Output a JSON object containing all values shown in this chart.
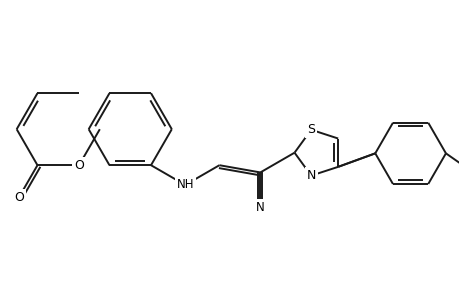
{
  "background_color": "#ffffff",
  "line_color": "#1a1a1a",
  "line_width": 1.4,
  "figsize": [
    4.6,
    3.0
  ],
  "dpi": 100,
  "xlim": [
    -0.5,
    10.5
  ],
  "ylim": [
    -0.5,
    6.5
  ]
}
